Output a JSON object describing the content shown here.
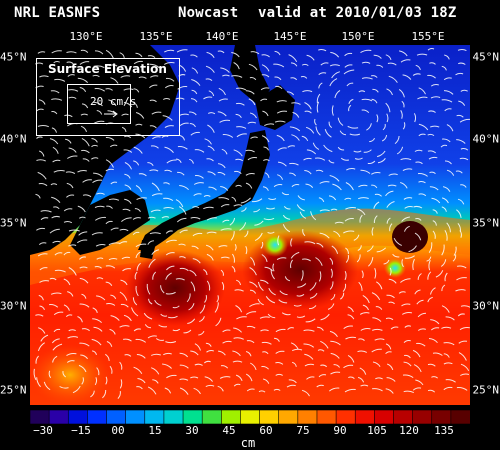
{
  "header": {
    "model": "NRL EASNFS",
    "product": "Nowcast",
    "valid": "valid at 2010/01/03 18Z"
  },
  "map": {
    "lon_labels": [
      "130°E",
      "135°E",
      "140°E",
      "145°E",
      "150°E",
      "155°E"
    ],
    "lat_labels": [
      "45°N",
      "40°N",
      "35°N",
      "30°N",
      "25°N"
    ]
  },
  "legend": {
    "title": "Surface Elevation",
    "scale": "20 cm/s"
  },
  "colorbar": {
    "labels": [
      "−30",
      "−15",
      "00",
      "15",
      "30",
      "45",
      "60",
      "75",
      "90",
      "105",
      "120",
      "135"
    ],
    "unit": "cm",
    "colors": [
      "#20005a",
      "#2a00a8",
      "#0010dd",
      "#0030ff",
      "#0060ff",
      "#0090ff",
      "#00b8f0",
      "#00d0d0",
      "#00e090",
      "#40e040",
      "#a0f000",
      "#e8f000",
      "#ffd000",
      "#ffa800",
      "#ff8000",
      "#ff5800",
      "#ff3000",
      "#f01000",
      "#d80000",
      "#b80000",
      "#980000",
      "#780000",
      "#580000"
    ]
  }
}
